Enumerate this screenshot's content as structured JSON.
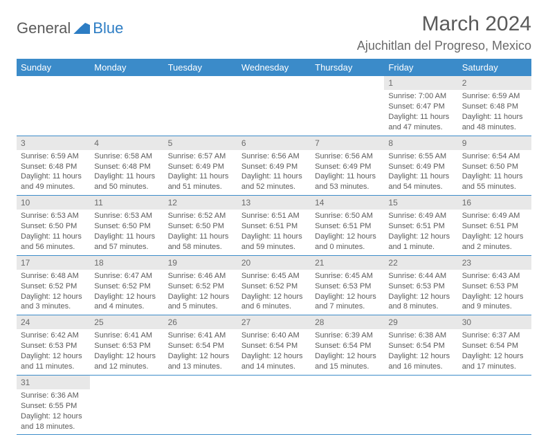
{
  "brand": {
    "part1": "General",
    "part2": "Blue"
  },
  "title": "March 2024",
  "location": "Ajuchitlan del Progreso, Mexico",
  "colors": {
    "header_bg": "#3b8bc9",
    "header_fg": "#ffffff",
    "daynum_bg": "#e8e8e8",
    "text": "#5a5a5a",
    "accent": "#2d7dc4"
  },
  "typography": {
    "title_fontsize": 30,
    "location_fontsize": 18,
    "header_fontsize": 13,
    "cell_fontsize": 11
  },
  "days_of_week": [
    "Sunday",
    "Monday",
    "Tuesday",
    "Wednesday",
    "Thursday",
    "Friday",
    "Saturday"
  ],
  "weeks": [
    [
      null,
      null,
      null,
      null,
      null,
      {
        "n": "1",
        "sr": "Sunrise: 7:00 AM",
        "ss": "Sunset: 6:47 PM",
        "dl": "Daylight: 11 hours and 47 minutes."
      },
      {
        "n": "2",
        "sr": "Sunrise: 6:59 AM",
        "ss": "Sunset: 6:48 PM",
        "dl": "Daylight: 11 hours and 48 minutes."
      }
    ],
    [
      {
        "n": "3",
        "sr": "Sunrise: 6:59 AM",
        "ss": "Sunset: 6:48 PM",
        "dl": "Daylight: 11 hours and 49 minutes."
      },
      {
        "n": "4",
        "sr": "Sunrise: 6:58 AM",
        "ss": "Sunset: 6:48 PM",
        "dl": "Daylight: 11 hours and 50 minutes."
      },
      {
        "n": "5",
        "sr": "Sunrise: 6:57 AM",
        "ss": "Sunset: 6:49 PM",
        "dl": "Daylight: 11 hours and 51 minutes."
      },
      {
        "n": "6",
        "sr": "Sunrise: 6:56 AM",
        "ss": "Sunset: 6:49 PM",
        "dl": "Daylight: 11 hours and 52 minutes."
      },
      {
        "n": "7",
        "sr": "Sunrise: 6:56 AM",
        "ss": "Sunset: 6:49 PM",
        "dl": "Daylight: 11 hours and 53 minutes."
      },
      {
        "n": "8",
        "sr": "Sunrise: 6:55 AM",
        "ss": "Sunset: 6:49 PM",
        "dl": "Daylight: 11 hours and 54 minutes."
      },
      {
        "n": "9",
        "sr": "Sunrise: 6:54 AM",
        "ss": "Sunset: 6:50 PM",
        "dl": "Daylight: 11 hours and 55 minutes."
      }
    ],
    [
      {
        "n": "10",
        "sr": "Sunrise: 6:53 AM",
        "ss": "Sunset: 6:50 PM",
        "dl": "Daylight: 11 hours and 56 minutes."
      },
      {
        "n": "11",
        "sr": "Sunrise: 6:53 AM",
        "ss": "Sunset: 6:50 PM",
        "dl": "Daylight: 11 hours and 57 minutes."
      },
      {
        "n": "12",
        "sr": "Sunrise: 6:52 AM",
        "ss": "Sunset: 6:50 PM",
        "dl": "Daylight: 11 hours and 58 minutes."
      },
      {
        "n": "13",
        "sr": "Sunrise: 6:51 AM",
        "ss": "Sunset: 6:51 PM",
        "dl": "Daylight: 11 hours and 59 minutes."
      },
      {
        "n": "14",
        "sr": "Sunrise: 6:50 AM",
        "ss": "Sunset: 6:51 PM",
        "dl": "Daylight: 12 hours and 0 minutes."
      },
      {
        "n": "15",
        "sr": "Sunrise: 6:49 AM",
        "ss": "Sunset: 6:51 PM",
        "dl": "Daylight: 12 hours and 1 minute."
      },
      {
        "n": "16",
        "sr": "Sunrise: 6:49 AM",
        "ss": "Sunset: 6:51 PM",
        "dl": "Daylight: 12 hours and 2 minutes."
      }
    ],
    [
      {
        "n": "17",
        "sr": "Sunrise: 6:48 AM",
        "ss": "Sunset: 6:52 PM",
        "dl": "Daylight: 12 hours and 3 minutes."
      },
      {
        "n": "18",
        "sr": "Sunrise: 6:47 AM",
        "ss": "Sunset: 6:52 PM",
        "dl": "Daylight: 12 hours and 4 minutes."
      },
      {
        "n": "19",
        "sr": "Sunrise: 6:46 AM",
        "ss": "Sunset: 6:52 PM",
        "dl": "Daylight: 12 hours and 5 minutes."
      },
      {
        "n": "20",
        "sr": "Sunrise: 6:45 AM",
        "ss": "Sunset: 6:52 PM",
        "dl": "Daylight: 12 hours and 6 minutes."
      },
      {
        "n": "21",
        "sr": "Sunrise: 6:45 AM",
        "ss": "Sunset: 6:53 PM",
        "dl": "Daylight: 12 hours and 7 minutes."
      },
      {
        "n": "22",
        "sr": "Sunrise: 6:44 AM",
        "ss": "Sunset: 6:53 PM",
        "dl": "Daylight: 12 hours and 8 minutes."
      },
      {
        "n": "23",
        "sr": "Sunrise: 6:43 AM",
        "ss": "Sunset: 6:53 PM",
        "dl": "Daylight: 12 hours and 9 minutes."
      }
    ],
    [
      {
        "n": "24",
        "sr": "Sunrise: 6:42 AM",
        "ss": "Sunset: 6:53 PM",
        "dl": "Daylight: 12 hours and 11 minutes."
      },
      {
        "n": "25",
        "sr": "Sunrise: 6:41 AM",
        "ss": "Sunset: 6:53 PM",
        "dl": "Daylight: 12 hours and 12 minutes."
      },
      {
        "n": "26",
        "sr": "Sunrise: 6:41 AM",
        "ss": "Sunset: 6:54 PM",
        "dl": "Daylight: 12 hours and 13 minutes."
      },
      {
        "n": "27",
        "sr": "Sunrise: 6:40 AM",
        "ss": "Sunset: 6:54 PM",
        "dl": "Daylight: 12 hours and 14 minutes."
      },
      {
        "n": "28",
        "sr": "Sunrise: 6:39 AM",
        "ss": "Sunset: 6:54 PM",
        "dl": "Daylight: 12 hours and 15 minutes."
      },
      {
        "n": "29",
        "sr": "Sunrise: 6:38 AM",
        "ss": "Sunset: 6:54 PM",
        "dl": "Daylight: 12 hours and 16 minutes."
      },
      {
        "n": "30",
        "sr": "Sunrise: 6:37 AM",
        "ss": "Sunset: 6:54 PM",
        "dl": "Daylight: 12 hours and 17 minutes."
      }
    ],
    [
      {
        "n": "31",
        "sr": "Sunrise: 6:36 AM",
        "ss": "Sunset: 6:55 PM",
        "dl": "Daylight: 12 hours and 18 minutes."
      },
      null,
      null,
      null,
      null,
      null,
      null
    ]
  ]
}
